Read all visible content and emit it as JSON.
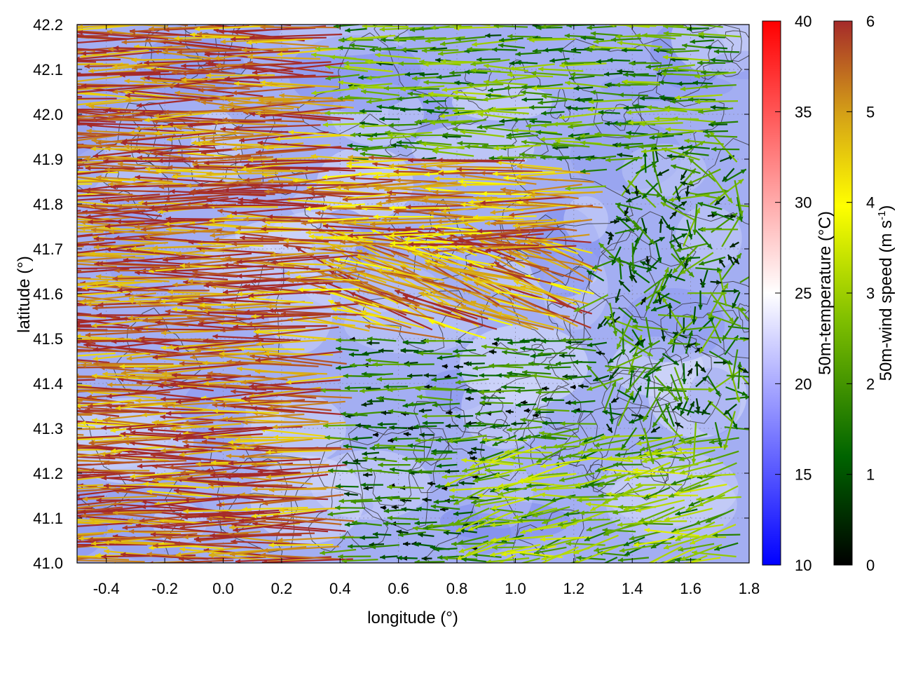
{
  "chart_data": {
    "type": "heatmap",
    "title": "",
    "xlabel": "longitude (°)",
    "ylabel": "latitude (°)",
    "xlim": [
      -0.5,
      1.8
    ],
    "ylim": [
      41.0,
      42.2
    ],
    "x_ticks": [
      "-0.4",
      "-0.2",
      "0.0",
      "0.2",
      "0.4",
      "0.6",
      "0.8",
      "1.0",
      "1.2",
      "1.4",
      "1.6",
      "1.8"
    ],
    "y_ticks": [
      "41.0",
      "41.1",
      "41.2",
      "41.3",
      "41.4",
      "41.5",
      "41.6",
      "41.7",
      "41.8",
      "41.9",
      "42.0",
      "42.1",
      "42.2"
    ],
    "x_tick_values": [
      -0.4,
      -0.2,
      0.0,
      0.2,
      0.4,
      0.6,
      0.8,
      1.0,
      1.2,
      1.4,
      1.6,
      1.8
    ],
    "y_tick_values": [
      41.0,
      41.1,
      41.2,
      41.3,
      41.4,
      41.5,
      41.6,
      41.7,
      41.8,
      41.9,
      42.0,
      42.1,
      42.2
    ],
    "grid": true,
    "temperature_colorbar": {
      "label": "50m-temperature (°C)",
      "range": [
        10,
        40
      ],
      "ticks": [
        "10",
        "15",
        "20",
        "25",
        "30",
        "35",
        "40"
      ],
      "tick_values": [
        10,
        15,
        20,
        25,
        30,
        35,
        40
      ],
      "colors": [
        "#0000ff",
        "#ffffff",
        "#ff0000"
      ]
    },
    "wind_colorbar": {
      "label": "50m-wind speed (m s",
      "label_sup": "-1",
      "label_end": ")",
      "range": [
        0,
        6
      ],
      "ticks": [
        "0",
        "1",
        "2",
        "3",
        "4",
        "5",
        "6"
      ],
      "tick_values": [
        0,
        1,
        2,
        3,
        4,
        5,
        6
      ],
      "colors": [
        "#000000",
        "#006400",
        "#7fbf00",
        "#ffff00",
        "#d4a017",
        "#a52a2a"
      ]
    },
    "background_temperature_c": 19,
    "wind_regimes": [
      {
        "region": "west",
        "lon": [
          -0.5,
          0.45
        ],
        "lat": [
          41.0,
          42.2
        ],
        "speed_ms": 5.5,
        "direction": "from east (westward flow)"
      },
      {
        "region": "central band",
        "lon": [
          0.45,
          1.3
        ],
        "lat": [
          41.5,
          41.9
        ],
        "speed_ms": 5.0,
        "direction": "westward"
      },
      {
        "region": "north",
        "lon": [
          0.4,
          1.8
        ],
        "lat": [
          41.9,
          42.2
        ],
        "speed_ms": 2.0,
        "direction": "westward"
      },
      {
        "region": "east",
        "lon": [
          1.3,
          1.8
        ],
        "lat": [
          41.3,
          41.9
        ],
        "speed_ms": 1.5,
        "direction": "variable"
      },
      {
        "region": "southeast",
        "lon": [
          0.9,
          1.8
        ],
        "lat": [
          41.0,
          41.3
        ],
        "speed_ms": 2.5,
        "direction": "westward / southwestward"
      }
    ]
  }
}
